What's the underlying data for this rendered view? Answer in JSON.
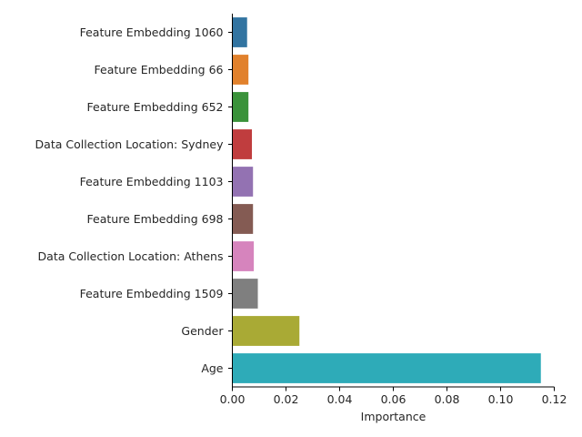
{
  "chart_data": {
    "type": "bar",
    "orientation": "horizontal",
    "categories": [
      "Feature Embedding 1060",
      "Feature Embedding 66",
      "Feature Embedding 652",
      "Data Collection Location: Sydney",
      "Feature Embedding 1103",
      "Feature Embedding 698",
      "Data Collection Location: Athens",
      "Feature Embedding 1509",
      "Gender",
      "Age"
    ],
    "values": [
      0.0055,
      0.006,
      0.006,
      0.0073,
      0.0077,
      0.0077,
      0.008,
      0.0095,
      0.025,
      0.115
    ],
    "colors": [
      "#3274a1",
      "#e1812c",
      "#3a923a",
      "#c03d3e",
      "#9372b2",
      "#845b53",
      "#d684bd",
      "#7f7f7f",
      "#a9aa35",
      "#2eabb8"
    ],
    "xlabel": "Importance",
    "ylabel": "",
    "xlim": [
      0,
      0.12
    ],
    "xticks": [
      "0.00",
      "0.02",
      "0.04",
      "0.06",
      "0.08",
      "0.10",
      "0.12"
    ],
    "grid": false,
    "legend": "none"
  }
}
